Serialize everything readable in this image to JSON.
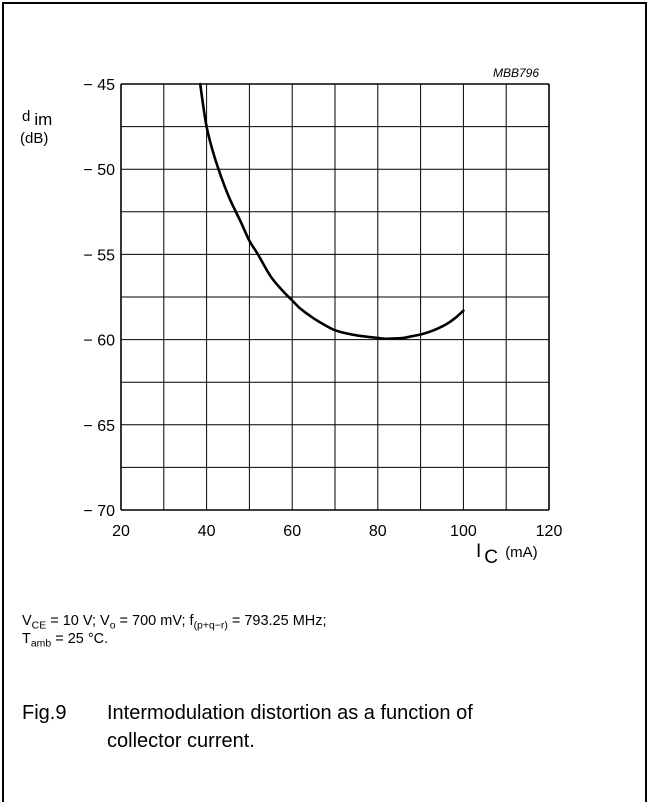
{
  "chart_data": {
    "type": "line",
    "code": "MBB796",
    "ylabel": {
      "main": "d",
      "sub": "im",
      "unit": "(dB)"
    },
    "xlabel": {
      "main": "I",
      "sub": "C",
      "unit": "(mA)"
    },
    "xlim": [
      20,
      120
    ],
    "ylim": [
      -70,
      -45
    ],
    "x_ticks": [
      20,
      40,
      60,
      80,
      100,
      120
    ],
    "y_ticks": [
      -45,
      -50,
      -55,
      -60,
      -65,
      -70
    ],
    "x_tick_labels": [
      "20",
      "40",
      "60",
      "80",
      "100",
      "120"
    ],
    "y_tick_labels": [
      "− 45",
      "− 50",
      "− 55",
      "− 60",
      "− 65",
      "− 70"
    ],
    "grid": true,
    "series": [
      {
        "color": "#000000",
        "x": [
          38.5,
          40,
          42,
          45,
          48,
          50,
          52,
          55,
          58,
          60,
          62,
          65,
          68,
          70,
          72,
          75,
          78,
          80,
          82,
          84,
          86,
          88,
          90,
          92,
          94,
          96,
          98,
          100
        ],
        "y": [
          -45.0,
          -47.5,
          -49.4,
          -51.5,
          -53.1,
          -54.2,
          -55.0,
          -56.3,
          -57.2,
          -57.7,
          -58.2,
          -58.75,
          -59.2,
          -59.45,
          -59.6,
          -59.75,
          -59.85,
          -59.9,
          -59.95,
          -59.93,
          -59.9,
          -59.8,
          -59.7,
          -59.55,
          -59.35,
          -59.1,
          -58.75,
          -58.3
        ]
      }
    ]
  },
  "conditions": {
    "line1": {
      "p1": "V",
      "s1": "CE",
      "p2": " = 10 V; V",
      "s2": "o",
      "p3": " = 700 mV; f",
      "s3": "(p+q−r)",
      "p4": " = 793.25 MHz;"
    },
    "line2": {
      "p1": "T",
      "s1": "amb",
      "p2": " = 25 °C."
    }
  },
  "caption": {
    "fig": "Fig.9",
    "line1": "Intermodulation distortion as a function of",
    "line2": "collector current."
  }
}
